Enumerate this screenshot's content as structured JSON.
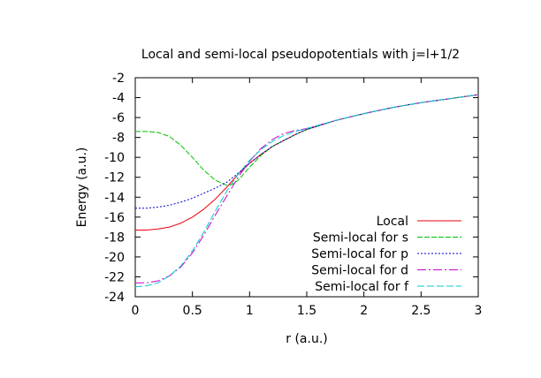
{
  "chart_data": {
    "type": "line",
    "title": "Local and semi-local pseudopotentials with j=l+1/2",
    "xlabel": "r (a.u.)",
    "ylabel": "Energy (a.u.)",
    "xlim": [
      0,
      3
    ],
    "ylim": [
      -24,
      -2
    ],
    "xticks": [
      0,
      0.5,
      1,
      1.5,
      2,
      2.5,
      3
    ],
    "xtick_labels": [
      "0",
      "0.5",
      "1",
      "1.5",
      "2",
      "2.5",
      "3"
    ],
    "yticks": [
      -2,
      -4,
      -6,
      -8,
      -10,
      -12,
      -14,
      -16,
      -18,
      -20,
      -22,
      -24
    ],
    "ytick_labels": [
      "-2",
      "-4",
      "-6",
      "-8",
      "-10",
      "-12",
      "-14",
      "-16",
      "-18",
      "-20",
      "-22",
      "-24"
    ],
    "grid": false,
    "legend_position": "bottom-right",
    "series": [
      {
        "name": "Local",
        "color": "#e8000b",
        "dash": "solid",
        "x": [
          0,
          0.1,
          0.2,
          0.3,
          0.4,
          0.5,
          0.6,
          0.7,
          0.8,
          0.9,
          1.0,
          1.1,
          1.2,
          1.3,
          1.4,
          1.5,
          1.75,
          2.0,
          2.25,
          2.5,
          2.75,
          3.0
        ],
        "y": [
          -17.3,
          -17.3,
          -17.2,
          -17.0,
          -16.6,
          -16.0,
          -15.2,
          -14.2,
          -13.0,
          -11.7,
          -10.6,
          -9.7,
          -8.9,
          -8.3,
          -7.7,
          -7.2,
          -6.3,
          -5.6,
          -5.0,
          -4.5,
          -4.1,
          -3.7
        ]
      },
      {
        "name": "Semi-local for s",
        "color": "#00c000",
        "dash": "6,2",
        "x": [
          0,
          0.1,
          0.2,
          0.3,
          0.4,
          0.5,
          0.6,
          0.7,
          0.8,
          0.85,
          0.9,
          1.0,
          1.1,
          1.2,
          1.3,
          1.4,
          1.5,
          1.75,
          2.0,
          2.25,
          2.5,
          2.75,
          3.0
        ],
        "y": [
          -7.4,
          -7.4,
          -7.5,
          -7.9,
          -8.8,
          -10.0,
          -11.3,
          -12.3,
          -12.8,
          -12.7,
          -12.3,
          -11.0,
          -9.8,
          -8.9,
          -8.3,
          -7.7,
          -7.2,
          -6.3,
          -5.6,
          -5.0,
          -4.5,
          -4.1,
          -3.7
        ]
      },
      {
        "name": "Semi-local for p",
        "color": "#0000cc",
        "dash": "2,2",
        "x": [
          0,
          0.1,
          0.2,
          0.3,
          0.4,
          0.5,
          0.6,
          0.7,
          0.8,
          0.9,
          1.0,
          1.1,
          1.2,
          1.3,
          1.4,
          1.5,
          1.75,
          2.0,
          2.25,
          2.5,
          2.75,
          3.0
        ],
        "y": [
          -15.1,
          -15.1,
          -15.0,
          -14.8,
          -14.5,
          -14.1,
          -13.6,
          -13.1,
          -12.5,
          -11.6,
          -10.6,
          -9.7,
          -8.9,
          -8.3,
          -7.7,
          -7.2,
          -6.3,
          -5.6,
          -5.0,
          -4.5,
          -4.1,
          -3.7
        ]
      },
      {
        "name": "Semi-local for d",
        "color": "#cc00cc",
        "dash": "10,3,2,3",
        "x": [
          0,
          0.1,
          0.2,
          0.3,
          0.4,
          0.5,
          0.6,
          0.7,
          0.8,
          0.9,
          1.0,
          1.1,
          1.2,
          1.3,
          1.4,
          1.5,
          1.75,
          2.0,
          2.25,
          2.5,
          2.75,
          3.0
        ],
        "y": [
          -22.6,
          -22.6,
          -22.4,
          -21.9,
          -21.0,
          -19.6,
          -17.8,
          -15.8,
          -13.9,
          -12.0,
          -10.4,
          -9.1,
          -8.2,
          -7.6,
          -7.3,
          -7.1,
          -6.3,
          -5.6,
          -5.0,
          -4.5,
          -4.1,
          -3.7
        ]
      },
      {
        "name": "Semi-local for f",
        "color": "#00cccc",
        "dash": "8,3",
        "x": [
          0,
          0.1,
          0.2,
          0.3,
          0.4,
          0.5,
          0.6,
          0.7,
          0.8,
          0.9,
          1.0,
          1.1,
          1.2,
          1.3,
          1.4,
          1.5,
          1.75,
          2.0,
          2.25,
          2.5,
          2.75,
          3.0
        ],
        "y": [
          -23.0,
          -22.9,
          -22.6,
          -21.9,
          -20.9,
          -19.4,
          -17.5,
          -15.4,
          -13.4,
          -11.7,
          -10.3,
          -9.2,
          -8.4,
          -7.8,
          -7.4,
          -7.1,
          -6.3,
          -5.6,
          -5.0,
          -4.5,
          -4.1,
          -3.7
        ]
      }
    ]
  }
}
